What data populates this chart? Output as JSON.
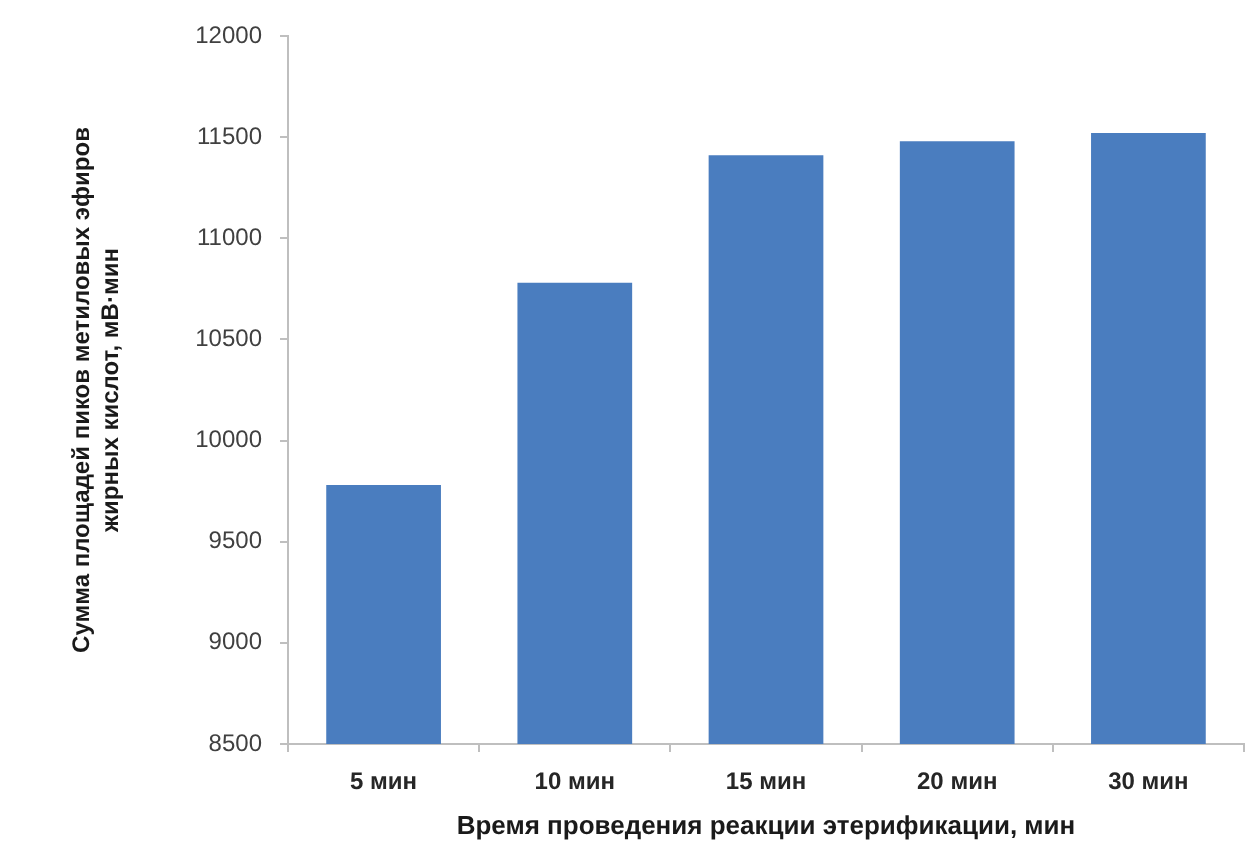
{
  "chart_data": {
    "type": "bar",
    "xlabel": "Время проведения реакции этерификации, мин",
    "ylabel": "Сумма площадей пиков метиловых эфиров жирных кислот, мВ·мин",
    "categories": [
      "5 мин",
      "10 мин",
      "15 мин",
      "20 мин",
      "30 мин"
    ],
    "values": [
      9780,
      10780,
      11410,
      11480,
      11520
    ],
    "color": "#4a7dbf",
    "ylim": [
      8500,
      12000
    ],
    "yticks": [
      8500,
      9000,
      9500,
      10000,
      10500,
      11000,
      11500,
      12000
    ]
  }
}
